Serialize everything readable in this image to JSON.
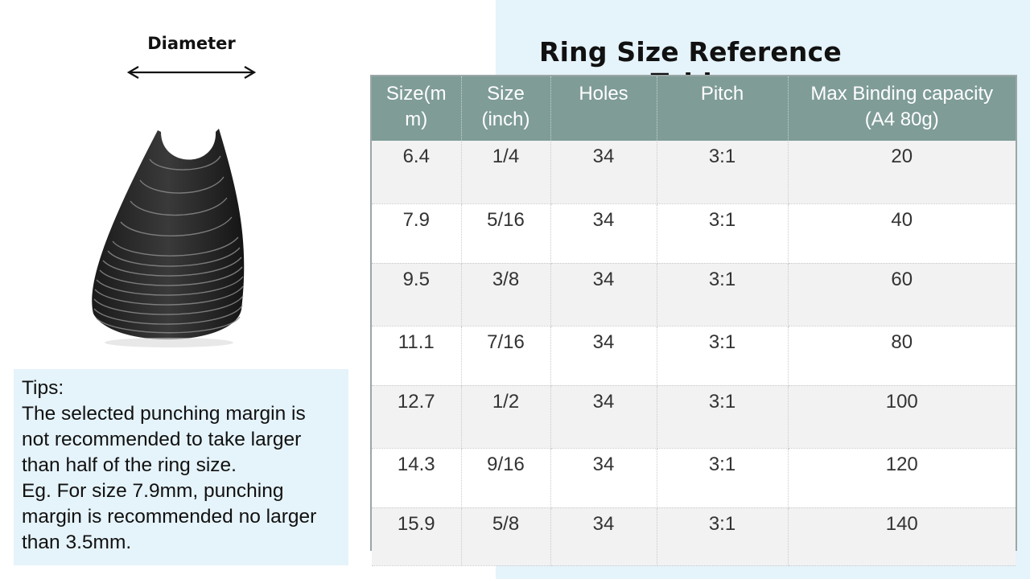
{
  "figure": {
    "diameter_label": "Diameter"
  },
  "title": "Ring Size Reference Table",
  "tips": {
    "lines": [
      "Tips:",
      "The selected punching margin is",
      "not recommended to take larger",
      "than half of the ring size.",
      "Eg. For size 7.9mm, punching",
      "margin is recommended no larger",
      "than 3.5mm."
    ]
  },
  "table": {
    "headers": [
      [
        "Size(m",
        "m)"
      ],
      [
        "Size",
        "(inch)"
      ],
      [
        "Holes",
        ""
      ],
      [
        "Pitch",
        ""
      ],
      [
        "Max Binding capacity",
        "(A4 80g)"
      ]
    ],
    "rows": [
      [
        "6.4",
        "1/4",
        "34",
        "3:1",
        "20"
      ],
      [
        "7.9",
        "5/16",
        "34",
        "3:1",
        "40"
      ],
      [
        "9.5",
        "3/8",
        "34",
        "3:1",
        "60"
      ],
      [
        "11.1",
        "7/16",
        "34",
        "3:1",
        "80"
      ],
      [
        "12.7",
        "1/2",
        "34",
        "3:1",
        "100"
      ],
      [
        "14.3",
        "9/16",
        "34",
        "3:1",
        "120"
      ],
      [
        "15.9",
        "5/8",
        "34",
        "3:1",
        "140"
      ]
    ]
  },
  "colors": {
    "header_bg": "#7f9c97",
    "panel_bg": "#e5f3fa",
    "row_alt_bg": "#f2f2f2"
  }
}
